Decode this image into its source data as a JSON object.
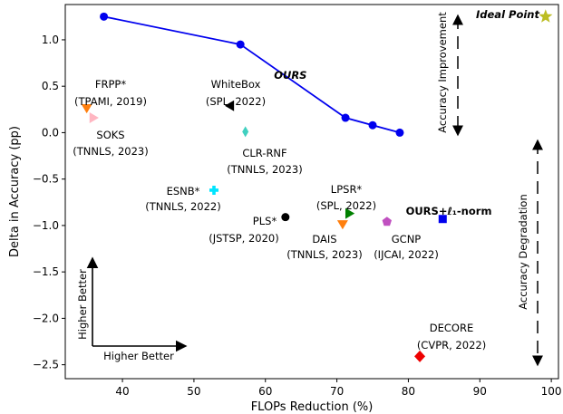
{
  "chart_data": {
    "type": "scatter",
    "title": "",
    "xlabel": "FLOPs Reduction (%)",
    "ylabel": "Delta in Accuracy (pp)",
    "xlim": [
      32,
      101
    ],
    "ylim": [
      -2.65,
      1.38
    ],
    "xticks": [
      40,
      50,
      60,
      70,
      80,
      90,
      100
    ],
    "yticks": [
      1.0,
      0.5,
      0.0,
      -0.5,
      -1.0,
      -1.5,
      -2.0,
      -2.5
    ],
    "xtick_labels": [
      "40",
      "50",
      "60",
      "70",
      "80",
      "90",
      "100"
    ],
    "ytick_labels": [
      "1.0",
      "0.5",
      "0.0",
      "−0.5",
      "−1.0",
      "−1.5",
      "−2.0",
      "−2.5"
    ],
    "grid": false,
    "legend": "none",
    "ours_line": {
      "name": "OURS",
      "color": "#0000ee",
      "x": [
        37.4,
        56.5,
        71.2,
        75.0,
        78.8
      ],
      "y": [
        1.25,
        0.95,
        0.16,
        0.08,
        0.0
      ]
    },
    "points": [
      {
        "id": "frpp",
        "name": "FRPP*",
        "venue": "(TPAMI, 2019)",
        "x": 35.0,
        "y": 0.26,
        "marker": "triangle-down",
        "color": "#ff7f0e"
      },
      {
        "id": "soks",
        "name": "SOKS",
        "venue": "(TNNLS, 2023)",
        "x": 36.0,
        "y": 0.16,
        "marker": "triangle-right",
        "color": "#ffb6c1"
      },
      {
        "id": "whitebox",
        "name": "WhiteBox",
        "venue": "(SPL, 2022)",
        "x": 55.0,
        "y": 0.29,
        "marker": "triangle-left",
        "color": "#000000"
      },
      {
        "id": "clr-rnf",
        "name": "CLR-RNF",
        "venue": "(TNNLS, 2023)",
        "x": 57.2,
        "y": 0.01,
        "marker": "thin-diamond",
        "color": "#40d0c0"
      },
      {
        "id": "esnb",
        "name": "ESNB*",
        "venue": "(TNNLS, 2022)",
        "x": 52.8,
        "y": -0.62,
        "marker": "plus",
        "color": "#00e5ff"
      },
      {
        "id": "pls",
        "name": "PLS*",
        "venue": "(JSTSP, 2020)",
        "x": 62.8,
        "y": -0.91,
        "marker": "circle",
        "color": "#000000"
      },
      {
        "id": "lpsr",
        "name": "LPSR*",
        "venue": "(SPL, 2022)",
        "x": 71.8,
        "y": -0.87,
        "marker": "triangle-right",
        "color": "#008000"
      },
      {
        "id": "dais",
        "name": "DAIS",
        "venue": "(TNNLS, 2023)",
        "x": 70.8,
        "y": -0.99,
        "marker": "triangle-down",
        "color": "#ff7f0e"
      },
      {
        "id": "gcnp",
        "name": "GCNP",
        "venue": "(IJCAI, 2022)",
        "x": 77.0,
        "y": -0.96,
        "marker": "pentagon",
        "color": "#c050c0"
      },
      {
        "id": "ours-l1",
        "name": "OURS+ℓ₁-norm",
        "venue": "",
        "x": 84.8,
        "y": -0.93,
        "marker": "square",
        "color": "#0000ee"
      },
      {
        "id": "decore",
        "name": "DECORE",
        "venue": "(CVPR, 2022)",
        "x": 81.6,
        "y": -2.41,
        "marker": "diamond",
        "color": "#ee0000"
      },
      {
        "id": "ideal",
        "name": "Ideal Point",
        "venue": "",
        "x": 99.2,
        "y": 1.25,
        "marker": "star",
        "color": "#bcbd22"
      }
    ],
    "annotations": {
      "ours_label": "OURS",
      "higher_better_vertical": "Higher Better",
      "higher_better_horizontal": "Higher Better",
      "accuracy_improvement": "Accuracy Improvement",
      "accuracy_degradation": "Accuracy Degradation"
    }
  }
}
